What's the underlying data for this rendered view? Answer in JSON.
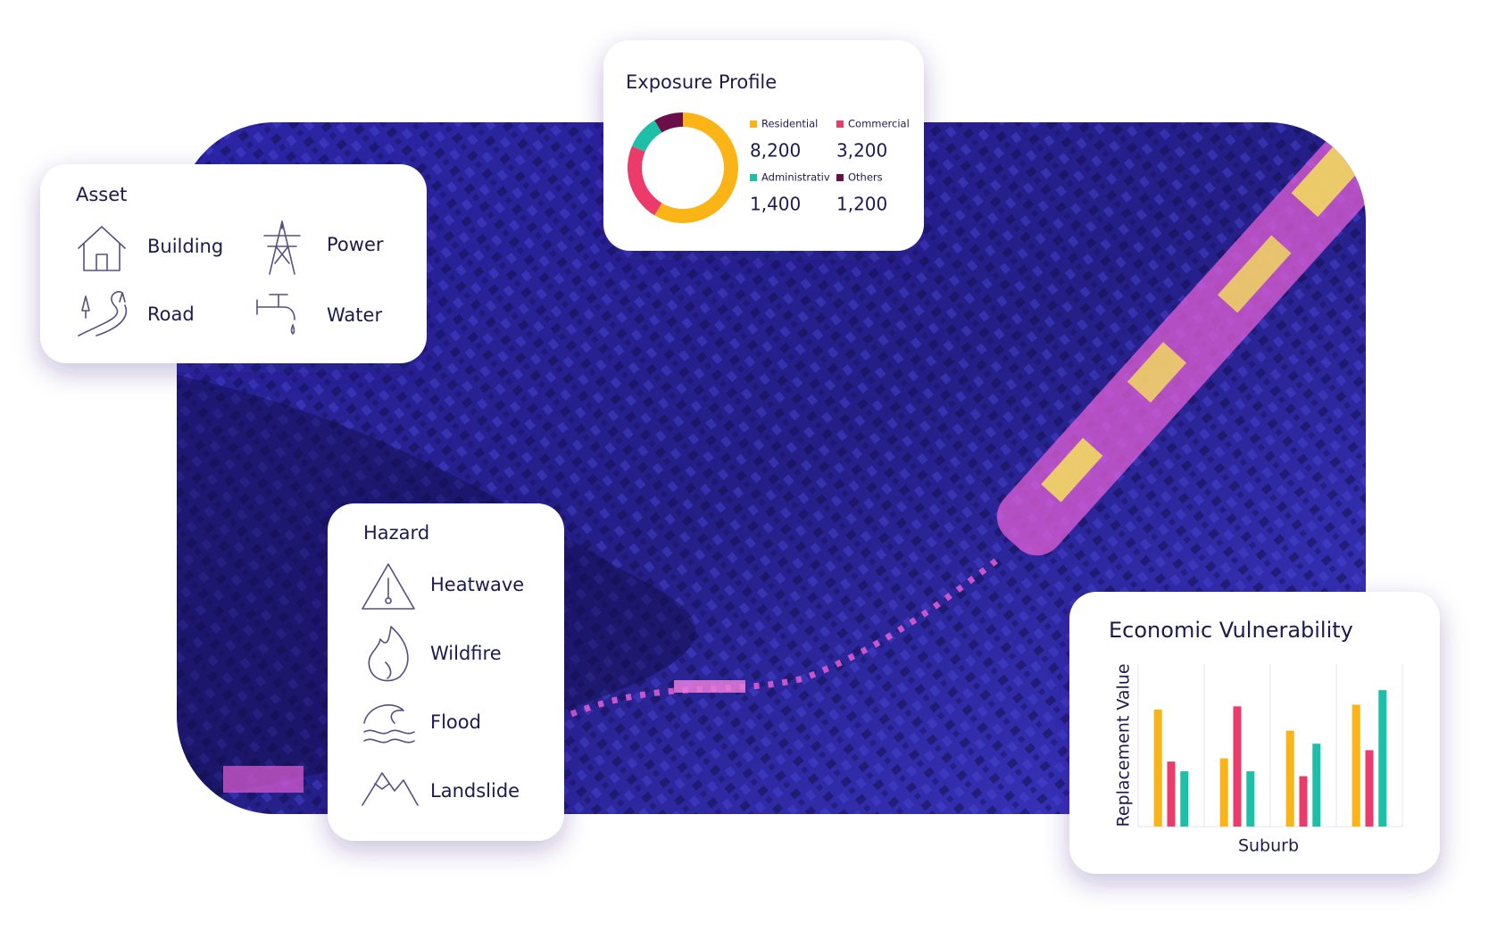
{
  "asset": {
    "title": "Asset",
    "items": [
      "Building",
      "Power",
      "Road",
      "Water"
    ]
  },
  "hazard": {
    "title": "Hazard",
    "items": [
      "Heatwave",
      "Wildfire",
      "Flood",
      "Landslide"
    ]
  },
  "chart_data": [
    {
      "type": "donut",
      "title": "Exposure Profile",
      "categories": [
        "Residential",
        "Commercial",
        "Administrativ",
        "Others"
      ],
      "values": [
        8200,
        3200,
        1400,
        1200
      ],
      "value_labels": [
        "8,200",
        "3,200",
        "1,400",
        "1,200"
      ],
      "colors": [
        "#fbb416",
        "#ec3a6a",
        "#1dbfa8",
        "#6b0f48"
      ]
    },
    {
      "type": "bar",
      "title": "Economic Vulnerability",
      "y_label": "Replacement Value",
      "x_label": "Suburb",
      "categories": [
        null,
        null,
        null,
        null
      ],
      "ylim": [
        0,
        100
      ],
      "series": [
        {
          "color": "#fbb416",
          "values": [
            72,
            42,
            59,
            75
          ]
        },
        {
          "color": "#ec3a6a",
          "values": [
            40,
            74,
            31,
            47
          ]
        },
        {
          "color": "#1dbfa8",
          "values": [
            34,
            34,
            51,
            84
          ]
        }
      ]
    }
  ]
}
